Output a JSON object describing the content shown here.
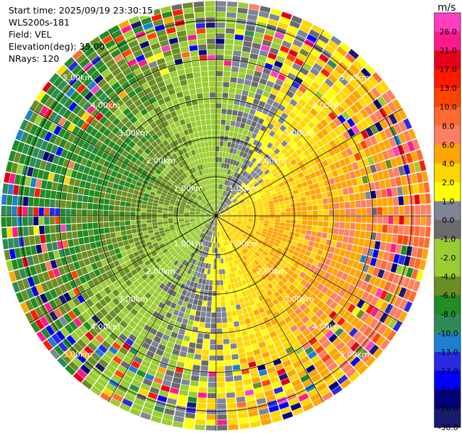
{
  "info": {
    "start_time": "Start time: 2025/09/19 23:30:15",
    "instrument": "WLS200s-181",
    "field": "Field: VEL",
    "elevation": "Elevation(deg): 35.00",
    "nrays": "NRays: 120"
  },
  "chart_data": {
    "type": "heatmap",
    "projection": "polar-ppi",
    "field": "VEL",
    "nrays": 120,
    "max_range_km": 5.5,
    "range_rings_km": [
      1,
      2,
      3,
      4,
      5
    ],
    "ring_labels": [
      "1.00km",
      "2.00km",
      "3.00km",
      "4.00km",
      "5.00km"
    ],
    "spokes_deg": [
      0,
      30,
      60,
      90,
      120,
      150,
      180,
      210,
      240,
      270,
      300,
      330
    ],
    "grid": true,
    "colorbar": {
      "unit": "m/s",
      "position": "right",
      "ticks": [
        "26.0",
        "21.0",
        "17.0",
        "13.0",
        "10.0",
        "8.0",
        "6.0",
        "4.0",
        "2.0",
        "1.0",
        "0.0",
        "-1.0",
        "-2.0",
        "-4.0",
        "-6.0",
        "-8.0",
        "-10.0",
        "-13.0",
        "-17.0",
        "-21.0",
        "-26.0",
        "-30.0"
      ],
      "bins": [
        {
          "min": 26,
          "max": 30,
          "color": "#ff3fbf"
        },
        {
          "min": 21,
          "max": 26,
          "color": "#ff1a8c"
        },
        {
          "min": 17,
          "max": 21,
          "color": "#e6001a"
        },
        {
          "min": 13,
          "max": 17,
          "color": "#ff1a00"
        },
        {
          "min": 10,
          "max": 13,
          "color": "#ff4500"
        },
        {
          "min": 8,
          "max": 10,
          "color": "#ff6a33"
        },
        {
          "min": 6,
          "max": 8,
          "color": "#ff8060"
        },
        {
          "min": 4,
          "max": 6,
          "color": "#ffa500"
        },
        {
          "min": 2,
          "max": 4,
          "color": "#ffd700"
        },
        {
          "min": 1,
          "max": 2,
          "color": "#ffff00"
        },
        {
          "min": 0,
          "max": 1,
          "color": "#7d8597"
        },
        {
          "min": -1,
          "max": 0,
          "color": "#6b6b6b"
        },
        {
          "min": -2,
          "max": -1,
          "color": "#9acd32"
        },
        {
          "min": -4,
          "max": -2,
          "color": "#9acd32"
        },
        {
          "min": -6,
          "max": -4,
          "color": "#6b8e23"
        },
        {
          "min": -8,
          "max": -6,
          "color": "#228b22"
        },
        {
          "min": -10,
          "max": -8,
          "color": "#2e8b57"
        },
        {
          "min": -13,
          "max": -10,
          "color": "#1e7fd0"
        },
        {
          "min": -17,
          "max": -13,
          "color": "#2a2ae0"
        },
        {
          "min": -21,
          "max": -17,
          "color": "#0000ff"
        },
        {
          "min": -26,
          "max": -21,
          "color": "#00007a"
        },
        {
          "min": -30,
          "max": -26,
          "color": "#1a1a6e"
        }
      ]
    }
  }
}
